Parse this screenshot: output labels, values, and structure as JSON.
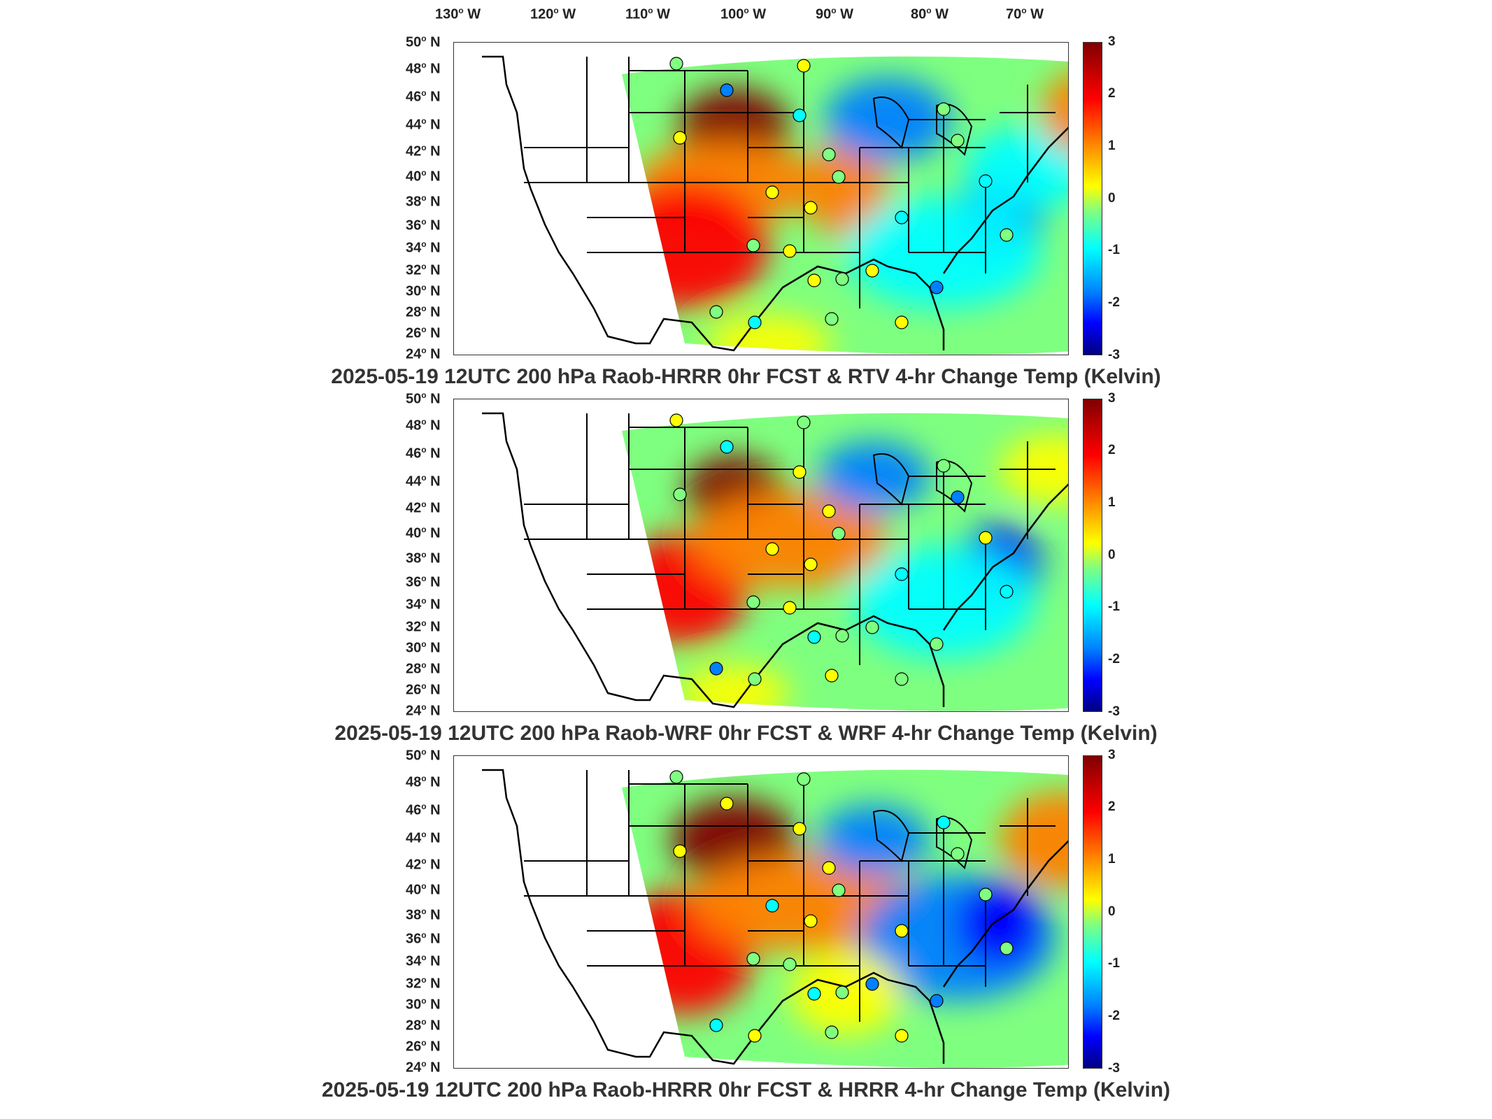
{
  "longitude_labels": [
    "130",
    "120",
    "110",
    "100",
    "90",
    "80",
    "70"
  ],
  "longitude_suffix": "W",
  "latitude_labels": [
    "50",
    "48",
    "46",
    "44",
    "42",
    "40",
    "38",
    "36",
    "34",
    "32",
    "30",
    "28",
    "26",
    "24"
  ],
  "latitude_suffix": "N",
  "colorbar": {
    "ticks": [
      "3",
      "2",
      "1",
      "0",
      "-1",
      "-2",
      "-3"
    ],
    "range": [
      -3,
      3
    ],
    "colormap": "jet",
    "colors": [
      "#000080",
      "#0000ff",
      "#0080ff",
      "#00ffff",
      "#80ff80",
      "#ffff00",
      "#ff8000",
      "#ff0000",
      "#800000"
    ]
  },
  "panels": [
    {
      "title": "2025-05-19 12UTC 200 hPa Raob-HRRR 0hr FCST & RTV 4-hr Change Temp (Kelvin)"
    },
    {
      "title": "2025-05-19 12UTC 200 hPa Raob-WRF 0hr FCST & WRF 4-hr Change Temp (Kelvin)"
    },
    {
      "title": "2025-05-19 12UTC 200 hPa Raob-HRRR 0hr FCST & HRRR 4-hr Change Temp (Kelvin)"
    }
  ]
}
